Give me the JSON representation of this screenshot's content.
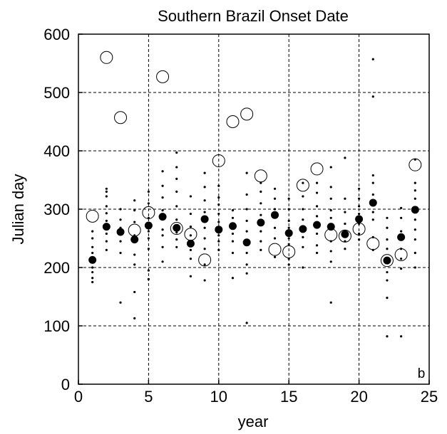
{
  "chart_data": {
    "type": "scatter",
    "title": "Southern Brazil Onset Date",
    "xlabel": "year",
    "ylabel": "Julian day",
    "panel_label": "b",
    "xlim": [
      0,
      25
    ],
    "ylim": [
      0,
      600
    ],
    "xticks": [
      "0",
      "5",
      "10",
      "15",
      "20",
      "25"
    ],
    "yticks": [
      "0",
      "100",
      "200",
      "300",
      "400",
      "500",
      "600"
    ],
    "grid": true,
    "series": [
      {
        "marker": "filled-circle",
        "points": [
          [
            1,
            213
          ],
          [
            2,
            270
          ],
          [
            3,
            261
          ],
          [
            4,
            248
          ],
          [
            5,
            272
          ],
          [
            6,
            287
          ],
          [
            7,
            268
          ],
          [
            8,
            241
          ],
          [
            9,
            283
          ],
          [
            10,
            265
          ],
          [
            11,
            271
          ],
          [
            12,
            243
          ],
          [
            13,
            277
          ],
          [
            14,
            290
          ],
          [
            15,
            259
          ],
          [
            16,
            266
          ],
          [
            17,
            273
          ],
          [
            18,
            270
          ],
          [
            19,
            257
          ],
          [
            20,
            283
          ],
          [
            21,
            311
          ],
          [
            22,
            212
          ],
          [
            23,
            252
          ],
          [
            24,
            299
          ]
        ]
      },
      {
        "marker": "open-circle",
        "points": [
          [
            1,
            288
          ],
          [
            2,
            560
          ],
          [
            3,
            457
          ],
          [
            4,
            264
          ],
          [
            5,
            294
          ],
          [
            6,
            527
          ],
          [
            7,
            267
          ],
          [
            8,
            257
          ],
          [
            9,
            213
          ],
          [
            10,
            383
          ],
          [
            11,
            450
          ],
          [
            12,
            463
          ],
          [
            13,
            357
          ],
          [
            14,
            231
          ],
          [
            15,
            227
          ],
          [
            16,
            341
          ],
          [
            17,
            369
          ],
          [
            18,
            256
          ],
          [
            19,
            254
          ],
          [
            20,
            266
          ],
          [
            21,
            241
          ],
          [
            22,
            212
          ],
          [
            23,
            222
          ],
          [
            24,
            376
          ]
        ]
      },
      {
        "marker": "small-dot",
        "points": [
          [
            1,
            175
          ],
          [
            1,
            182
          ],
          [
            1,
            192
          ],
          [
            1,
            200
          ],
          [
            1,
            210
          ],
          [
            1,
            225
          ],
          [
            1,
            235
          ],
          [
            1,
            250
          ],
          [
            1,
            262
          ],
          [
            2,
            230
          ],
          [
            2,
            245
          ],
          [
            2,
            258
          ],
          [
            2,
            280
          ],
          [
            2,
            293
          ],
          [
            2,
            305
          ],
          [
            2,
            322
          ],
          [
            2,
            330
          ],
          [
            2,
            335
          ],
          [
            3,
            140
          ],
          [
            3,
            225
          ],
          [
            3,
            245
          ],
          [
            3,
            268
          ],
          [
            3,
            282
          ],
          [
            3,
            300
          ],
          [
            4,
            113
          ],
          [
            4,
            158
          ],
          [
            4,
            205
          ],
          [
            4,
            222
          ],
          [
            4,
            255
          ],
          [
            4,
            278
          ],
          [
            4,
            298
          ],
          [
            4,
            315
          ],
          [
            5,
            180
          ],
          [
            5,
            195
          ],
          [
            5,
            232
          ],
          [
            5,
            250
          ],
          [
            5,
            262
          ],
          [
            5,
            285
          ],
          [
            5,
            310
          ],
          [
            5,
            330
          ],
          [
            6,
            210
          ],
          [
            6,
            235
          ],
          [
            6,
            255
          ],
          [
            6,
            265
          ],
          [
            6,
            298
          ],
          [
            6,
            320
          ],
          [
            6,
            340
          ],
          [
            6,
            365
          ],
          [
            7,
            235
          ],
          [
            7,
            248
          ],
          [
            7,
            260
          ],
          [
            7,
            282
          ],
          [
            7,
            305
          ],
          [
            7,
            330
          ],
          [
            7,
            352
          ],
          [
            7,
            372
          ],
          [
            7,
            397
          ],
          [
            8,
            185
          ],
          [
            8,
            215
          ],
          [
            8,
            230
          ],
          [
            8,
            255
          ],
          [
            8,
            270
          ],
          [
            8,
            292
          ],
          [
            8,
            322
          ],
          [
            9,
            178
          ],
          [
            9,
            205
          ],
          [
            9,
            232
          ],
          [
            9,
            250
          ],
          [
            9,
            268
          ],
          [
            9,
            295
          ],
          [
            9,
            315
          ],
          [
            9,
            338
          ],
          [
            9,
            362
          ],
          [
            10,
            230
          ],
          [
            10,
            245
          ],
          [
            10,
            255
          ],
          [
            10,
            278
          ],
          [
            10,
            292
          ],
          [
            10,
            308
          ],
          [
            10,
            320
          ],
          [
            10,
            340
          ],
          [
            11,
            182
          ],
          [
            11,
            225
          ],
          [
            11,
            245
          ],
          [
            11,
            258
          ],
          [
            11,
            285
          ],
          [
            11,
            298
          ],
          [
            12,
            105
          ],
          [
            12,
            190
          ],
          [
            12,
            205
          ],
          [
            12,
            225
          ],
          [
            12,
            262
          ],
          [
            12,
            280
          ],
          [
            12,
            300
          ],
          [
            12,
            325
          ],
          [
            12,
            362
          ],
          [
            13,
            230
          ],
          [
            13,
            245
          ],
          [
            13,
            262
          ],
          [
            13,
            290
          ],
          [
            13,
            310
          ],
          [
            13,
            330
          ],
          [
            13,
            345
          ],
          [
            14,
            218
          ],
          [
            14,
            250
          ],
          [
            14,
            268
          ],
          [
            14,
            300
          ],
          [
            14,
            318
          ],
          [
            14,
            335
          ],
          [
            15,
            205
          ],
          [
            15,
            215
          ],
          [
            15,
            240
          ],
          [
            15,
            250
          ],
          [
            15,
            268
          ],
          [
            15,
            280
          ],
          [
            15,
            300
          ],
          [
            15,
            318
          ],
          [
            16,
            200
          ],
          [
            16,
            235
          ],
          [
            16,
            252
          ],
          [
            16,
            282
          ],
          [
            16,
            300
          ],
          [
            16,
            322
          ],
          [
            16,
            345
          ],
          [
            17,
            225
          ],
          [
            17,
            238
          ],
          [
            17,
            258
          ],
          [
            17,
            288
          ],
          [
            17,
            305
          ],
          [
            17,
            328
          ],
          [
            17,
            345
          ],
          [
            18,
            140
          ],
          [
            18,
            210
          ],
          [
            18,
            228
          ],
          [
            18,
            245
          ],
          [
            18,
            285
          ],
          [
            18,
            298
          ],
          [
            18,
            318
          ],
          [
            18,
            338
          ],
          [
            18,
            372
          ],
          [
            19,
            232
          ],
          [
            19,
            245
          ],
          [
            19,
            262
          ],
          [
            19,
            275
          ],
          [
            19,
            295
          ],
          [
            19,
            318
          ],
          [
            19,
            388
          ],
          [
            20,
            248
          ],
          [
            20,
            258
          ],
          [
            20,
            275
          ],
          [
            20,
            292
          ],
          [
            20,
            305
          ],
          [
            20,
            318
          ],
          [
            20,
            335
          ],
          [
            21,
            230
          ],
          [
            21,
            252
          ],
          [
            21,
            282
          ],
          [
            21,
            295
          ],
          [
            21,
            325
          ],
          [
            21,
            345
          ],
          [
            21,
            358
          ],
          [
            21,
            493
          ],
          [
            21,
            557
          ],
          [
            22,
            82
          ],
          [
            22,
            148
          ],
          [
            22,
            178
          ],
          [
            22,
            192
          ],
          [
            22,
            232
          ],
          [
            22,
            248
          ],
          [
            22,
            268
          ],
          [
            22,
            285
          ],
          [
            23,
            82
          ],
          [
            23,
            198
          ],
          [
            23,
            215
          ],
          [
            23,
            232
          ],
          [
            23,
            262
          ],
          [
            23,
            285
          ],
          [
            23,
            302
          ],
          [
            24,
            200
          ],
          [
            24,
            225
          ],
          [
            24,
            248
          ],
          [
            24,
            265
          ],
          [
            24,
            282
          ],
          [
            24,
            318
          ],
          [
            24,
            332
          ],
          [
            24,
            345
          ],
          [
            24,
            385
          ]
        ]
      }
    ]
  }
}
